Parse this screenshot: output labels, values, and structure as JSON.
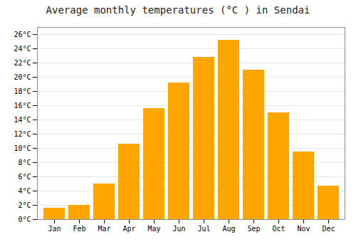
{
  "chart_data": {
    "type": "bar",
    "title": "Average monthly temperatures (°C ) in Sendai",
    "categories": [
      "Jan",
      "Feb",
      "Mar",
      "Apr",
      "May",
      "Jun",
      "Jul",
      "Aug",
      "Sep",
      "Oct",
      "Nov",
      "Dec"
    ],
    "values": [
      1.6,
      2.0,
      5.0,
      10.6,
      15.6,
      19.2,
      22.8,
      25.2,
      21.0,
      15.0,
      9.5,
      4.7
    ],
    "color": "#FFA500",
    "ylim": [
      0,
      27
    ],
    "yticks": [
      {
        "value": 0,
        "label": "0°C"
      },
      {
        "value": 2,
        "label": "2°C"
      },
      {
        "value": 4,
        "label": "4°C"
      },
      {
        "value": 6,
        "label": "6°C"
      },
      {
        "value": 8,
        "label": "8°C"
      },
      {
        "value": 10,
        "label": "10°C"
      },
      {
        "value": 12,
        "label": "12°C"
      },
      {
        "value": 14,
        "label": "14°C"
      },
      {
        "value": 16,
        "label": "16°C"
      },
      {
        "value": 18,
        "label": "18°C"
      },
      {
        "value": 20,
        "label": "20°C"
      },
      {
        "value": 22,
        "label": "22°C"
      },
      {
        "value": 24,
        "label": "24°C"
      },
      {
        "value": 26,
        "label": "26°C"
      }
    ],
    "grid": true
  }
}
